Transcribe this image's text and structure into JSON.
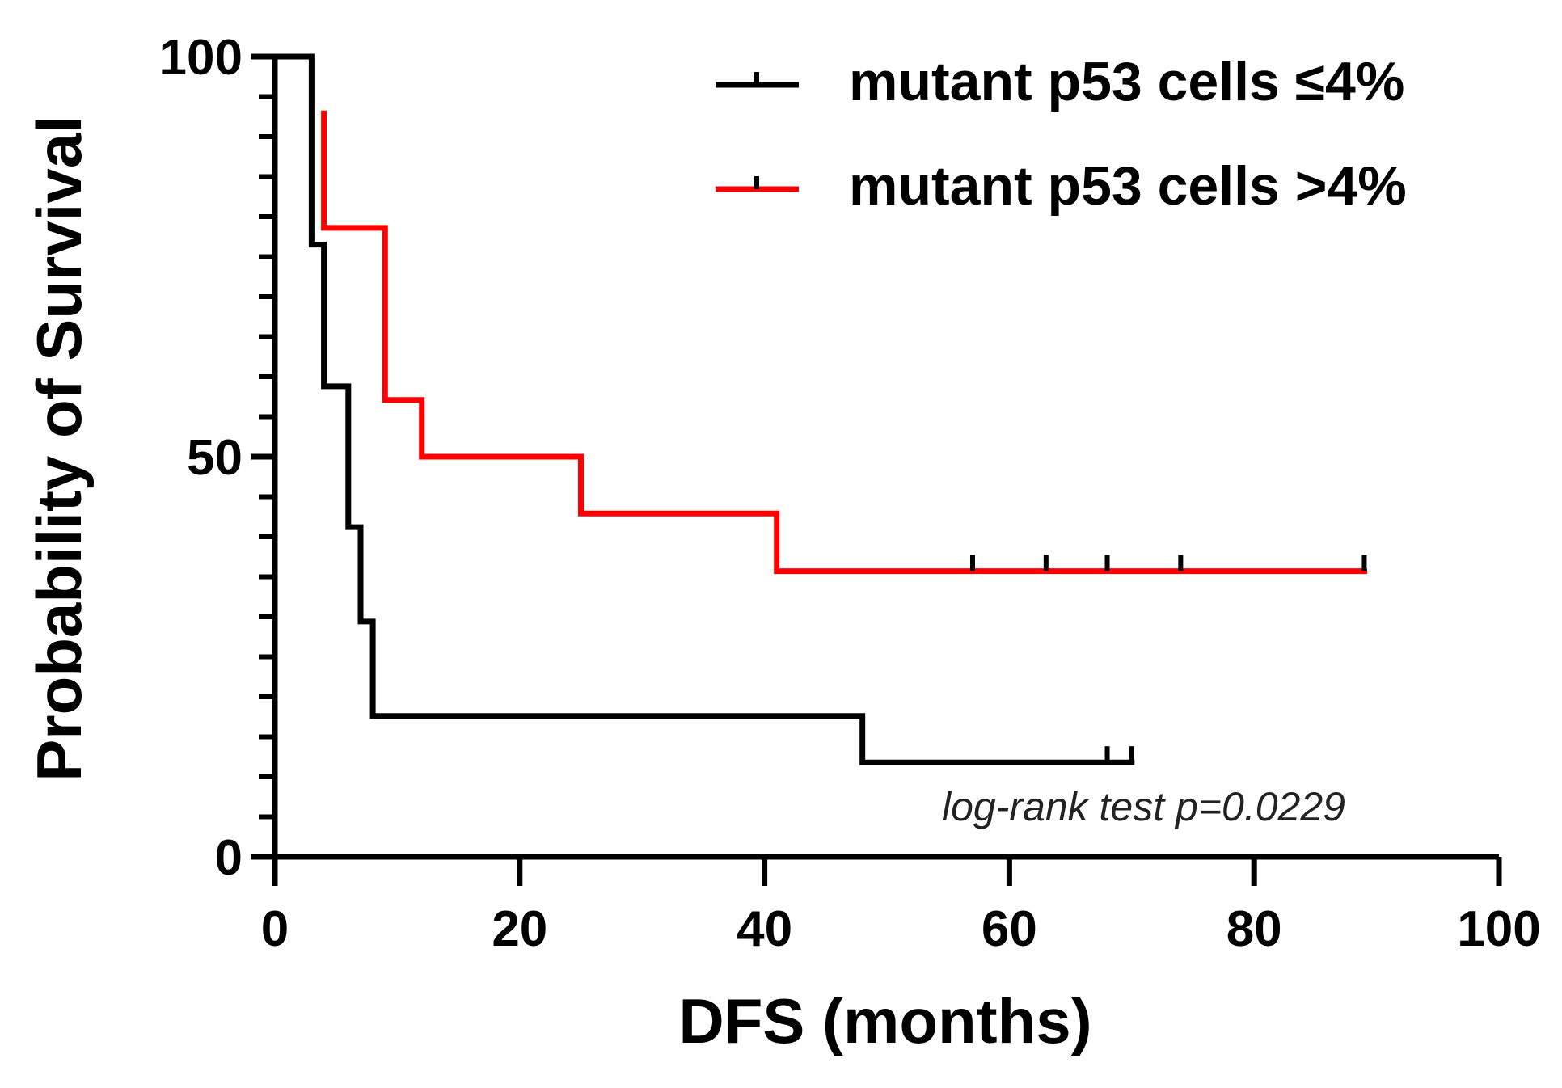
{
  "chart_data": {
    "type": "line",
    "subtype": "kaplan-meier",
    "xlabel": "DFS (months)",
    "ylabel": "Probability of Survival",
    "xlim": [
      0,
      100
    ],
    "ylim": [
      0,
      100
    ],
    "xticks": [
      0,
      20,
      40,
      60,
      80,
      100
    ],
    "yticks": [
      0,
      50,
      100
    ],
    "yticks_minor": [
      5,
      10,
      15,
      20,
      25,
      30,
      35,
      40,
      45,
      55,
      60,
      65,
      70,
      75,
      80,
      85,
      90,
      95
    ],
    "x_tick_labels": [
      "0",
      "20",
      "40",
      "60",
      "80",
      "100"
    ],
    "y_tick_labels": [
      "0",
      "50",
      "100"
    ],
    "legend_position": "top-right",
    "annotation": "log-rank test p=0.0229",
    "series": [
      {
        "name": "mutant p53 cells ≤4%",
        "color": "#000000",
        "steps": [
          [
            0,
            100
          ],
          [
            3,
            100
          ],
          [
            3,
            76.5
          ],
          [
            4,
            76.5
          ],
          [
            4,
            58.8
          ],
          [
            6,
            58.8
          ],
          [
            6,
            41.2
          ],
          [
            7,
            41.2
          ],
          [
            7,
            29.4
          ],
          [
            8,
            29.4
          ],
          [
            8,
            17.6
          ],
          [
            48,
            17.6
          ],
          [
            48,
            11.8
          ],
          [
            70,
            11.8
          ]
        ],
        "censored": [
          [
            68,
            11.8
          ],
          [
            70,
            11.8
          ]
        ]
      },
      {
        "name": "mutant p53 cells >4%",
        "color": "#ff0000",
        "steps": [
          [
            4,
            92.9
          ],
          [
            4,
            78.6
          ],
          [
            9,
            78.6
          ],
          [
            9,
            57.1
          ],
          [
            12,
            57.1
          ],
          [
            12,
            50
          ],
          [
            25,
            50
          ],
          [
            25,
            42.9
          ],
          [
            41,
            42.9
          ],
          [
            41,
            35.7
          ],
          [
            89,
            35.7
          ]
        ],
        "censored": [
          [
            57,
            35.7
          ],
          [
            63,
            35.7
          ],
          [
            68,
            35.7
          ],
          [
            74,
            35.7
          ],
          [
            89,
            35.7
          ]
        ]
      }
    ]
  }
}
